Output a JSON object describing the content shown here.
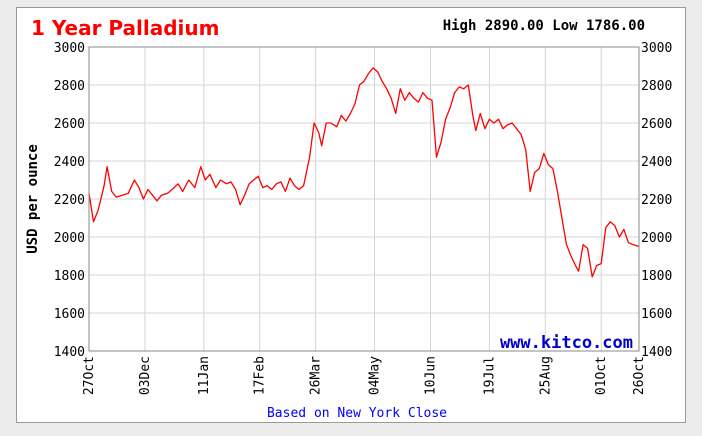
{
  "chart_data": {
    "type": "line",
    "title": "1 Year Palladium",
    "high_low_text": "High 2890.00 Low 1786.00",
    "high": 2890.0,
    "low": 1786.0,
    "ylabel": "USD per ounce",
    "xlabel": "Based on New York Close",
    "watermark": "www.kitco.com",
    "ylim": [
      1400,
      3000
    ],
    "y_ticks": [
      1400,
      1600,
      1800,
      2000,
      2200,
      2400,
      2600,
      2800,
      3000
    ],
    "x_tick_labels": [
      "27Oct",
      "03Dec",
      "11Jan",
      "17Feb",
      "26Mar",
      "04May",
      "10Jun",
      "19Jul",
      "25Aug",
      "01Oct",
      "26Oct"
    ],
    "x_tick_days": [
      0,
      37,
      76,
      113,
      150,
      189,
      226,
      265,
      302,
      339,
      364
    ],
    "grid": true,
    "series": [
      {
        "color": "#ff0000",
        "points": [
          [
            0,
            2230
          ],
          [
            3,
            2080
          ],
          [
            6,
            2140
          ],
          [
            10,
            2270
          ],
          [
            12,
            2370
          ],
          [
            15,
            2240
          ],
          [
            18,
            2210
          ],
          [
            22,
            2220
          ],
          [
            26,
            2230
          ],
          [
            30,
            2300
          ],
          [
            33,
            2260
          ],
          [
            36,
            2200
          ],
          [
            39,
            2250
          ],
          [
            42,
            2220
          ],
          [
            45,
            2190
          ],
          [
            48,
            2220
          ],
          [
            52,
            2230
          ],
          [
            55,
            2250
          ],
          [
            59,
            2280
          ],
          [
            62,
            2240
          ],
          [
            66,
            2300
          ],
          [
            70,
            2260
          ],
          [
            74,
            2370
          ],
          [
            77,
            2300
          ],
          [
            80,
            2330
          ],
          [
            84,
            2260
          ],
          [
            87,
            2300
          ],
          [
            91,
            2280
          ],
          [
            94,
            2290
          ],
          [
            97,
            2250
          ],
          [
            100,
            2170
          ],
          [
            103,
            2220
          ],
          [
            106,
            2280
          ],
          [
            109,
            2300
          ],
          [
            112,
            2320
          ],
          [
            115,
            2260
          ],
          [
            118,
            2270
          ],
          [
            121,
            2250
          ],
          [
            124,
            2280
          ],
          [
            127,
            2290
          ],
          [
            130,
            2240
          ],
          [
            133,
            2310
          ],
          [
            136,
            2270
          ],
          [
            139,
            2250
          ],
          [
            142,
            2270
          ],
          [
            146,
            2420
          ],
          [
            149,
            2600
          ],
          [
            152,
            2550
          ],
          [
            154,
            2480
          ],
          [
            157,
            2600
          ],
          [
            160,
            2600
          ],
          [
            164,
            2580
          ],
          [
            167,
            2640
          ],
          [
            170,
            2610
          ],
          [
            173,
            2650
          ],
          [
            176,
            2700
          ],
          [
            179,
            2800
          ],
          [
            182,
            2820
          ],
          [
            185,
            2860
          ],
          [
            188,
            2890
          ],
          [
            191,
            2870
          ],
          [
            194,
            2820
          ],
          [
            197,
            2780
          ],
          [
            200,
            2730
          ],
          [
            203,
            2650
          ],
          [
            206,
            2780
          ],
          [
            209,
            2720
          ],
          [
            212,
            2760
          ],
          [
            215,
            2730
          ],
          [
            218,
            2710
          ],
          [
            221,
            2760
          ],
          [
            224,
            2730
          ],
          [
            227,
            2720
          ],
          [
            230,
            2420
          ],
          [
            233,
            2500
          ],
          [
            236,
            2620
          ],
          [
            239,
            2680
          ],
          [
            242,
            2760
          ],
          [
            245,
            2790
          ],
          [
            248,
            2780
          ],
          [
            251,
            2800
          ],
          [
            254,
            2640
          ],
          [
            256,
            2560
          ],
          [
            259,
            2650
          ],
          [
            262,
            2570
          ],
          [
            265,
            2620
          ],
          [
            268,
            2600
          ],
          [
            271,
            2620
          ],
          [
            274,
            2570
          ],
          [
            277,
            2590
          ],
          [
            280,
            2600
          ],
          [
            283,
            2570
          ],
          [
            286,
            2540
          ],
          [
            289,
            2460
          ],
          [
            292,
            2240
          ],
          [
            295,
            2340
          ],
          [
            298,
            2360
          ],
          [
            301,
            2440
          ],
          [
            304,
            2380
          ],
          [
            307,
            2360
          ],
          [
            310,
            2240
          ],
          [
            313,
            2100
          ],
          [
            316,
            1960
          ],
          [
            319,
            1900
          ],
          [
            322,
            1850
          ],
          [
            324,
            1820
          ],
          [
            327,
            1960
          ],
          [
            330,
            1940
          ],
          [
            333,
            1790
          ],
          [
            336,
            1850
          ],
          [
            339,
            1860
          ],
          [
            342,
            2050
          ],
          [
            345,
            2080
          ],
          [
            348,
            2060
          ],
          [
            351,
            2000
          ],
          [
            354,
            2040
          ],
          [
            357,
            1970
          ],
          [
            360,
            1960
          ],
          [
            364,
            1950
          ]
        ]
      }
    ]
  }
}
